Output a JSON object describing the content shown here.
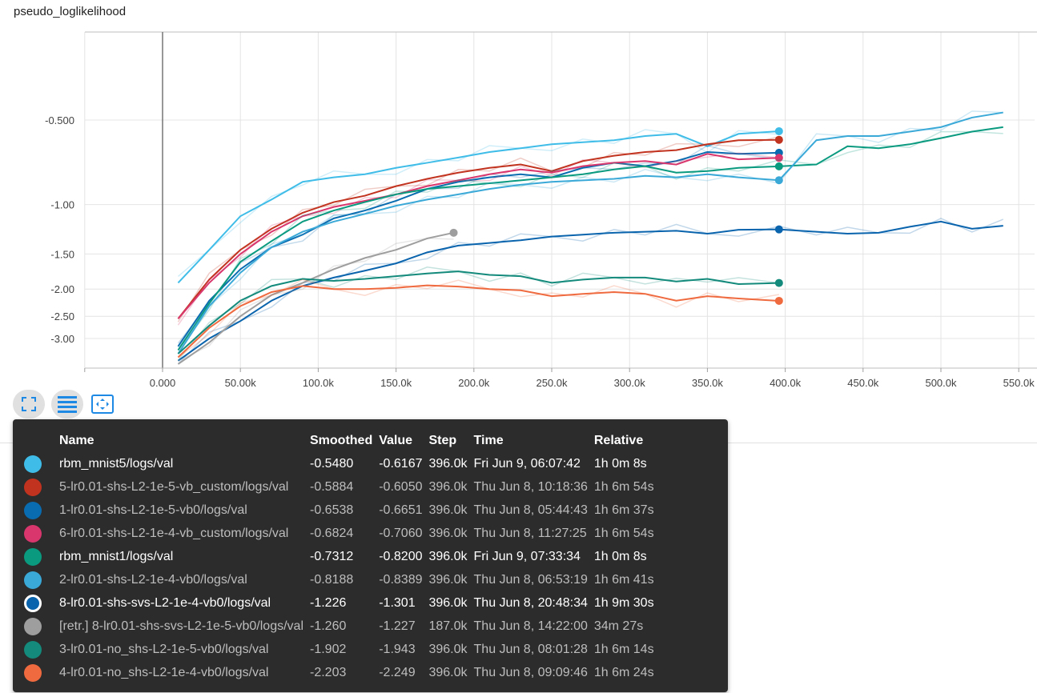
{
  "title": "pseudo_loglikelihood",
  "toolbar": {
    "fit_icon": "fullscreen-icon",
    "data_icon": "list-icon",
    "zoom_icon": "fit-domain-icon"
  },
  "chart_data": {
    "type": "line",
    "title": "pseudo_loglikelihood",
    "xlabel": "",
    "ylabel": "",
    "x_ticks": [
      "0.000",
      "50.00k",
      "100.0k",
      "150.0k",
      "200.0k",
      "250.0k",
      "300.0k",
      "350.0k",
      "400.0k",
      "450.0k",
      "500.0k",
      "550.0k"
    ],
    "y_ticks": [
      "-0.500",
      "-1.00",
      "-1.50",
      "-2.00",
      "-2.50",
      "-3.00"
    ],
    "xlim": [
      -50000,
      550000
    ],
    "y_scale": "log-of-negative",
    "grid": true,
    "series": [
      {
        "name": "rbm_mnist5/logs/val",
        "color": "#3fbde8",
        "x": [
          10000,
          30000,
          50000,
          70000,
          90000,
          110000,
          130000,
          150000,
          170000,
          190000,
          210000,
          230000,
          250000,
          270000,
          290000,
          310000,
          330000,
          350000,
          370000,
          396000
        ],
        "y": [
          -1.9,
          -1.45,
          -1.1,
          -0.96,
          -0.83,
          -0.8,
          -0.78,
          -0.74,
          -0.71,
          -0.68,
          -0.65,
          -0.63,
          -0.61,
          -0.6,
          -0.59,
          -0.57,
          -0.56,
          -0.62,
          -0.56,
          -0.548
        ]
      },
      {
        "name": "5-lr0.01-shs-L2-1e-5-vb_custom/logs/val",
        "color": "#c2331f",
        "x": [
          10000,
          30000,
          50000,
          70000,
          90000,
          110000,
          130000,
          150000,
          170000,
          190000,
          210000,
          230000,
          250000,
          270000,
          290000,
          310000,
          330000,
          350000,
          370000,
          396000
        ],
        "y": [
          -2.55,
          -1.85,
          -1.45,
          -1.22,
          -1.07,
          -0.98,
          -0.93,
          -0.86,
          -0.81,
          -0.77,
          -0.74,
          -0.72,
          -0.76,
          -0.7,
          -0.67,
          -0.65,
          -0.64,
          -0.61,
          -0.59,
          -0.588
        ]
      },
      {
        "name": "1-lr0.01-shs-L2-1e-5-vb0/logs/val",
        "color": "#0a6cb0",
        "x": [
          10000,
          30000,
          50000,
          70000,
          90000,
          110000,
          130000,
          150000,
          170000,
          190000,
          210000,
          230000,
          250000,
          270000,
          290000,
          310000,
          330000,
          350000,
          370000,
          396000
        ],
        "y": [
          -3.2,
          -2.2,
          -1.7,
          -1.42,
          -1.28,
          -1.12,
          -1.05,
          -0.97,
          -0.88,
          -0.83,
          -0.8,
          -0.78,
          -0.8,
          -0.74,
          -0.71,
          -0.73,
          -0.7,
          -0.65,
          -0.66,
          -0.654
        ]
      },
      {
        "name": "6-lr0.01-shs-L2-1e-4-vb_custom/logs/val",
        "color": "#d8366c",
        "x": [
          10000,
          30000,
          50000,
          70000,
          90000,
          110000,
          130000,
          150000,
          170000,
          190000,
          210000,
          230000,
          250000,
          270000,
          290000,
          310000,
          330000,
          350000,
          370000,
          396000
        ],
        "y": [
          -2.55,
          -1.9,
          -1.5,
          -1.25,
          -1.1,
          -1.02,
          -0.97,
          -0.92,
          -0.86,
          -0.82,
          -0.78,
          -0.75,
          -0.77,
          -0.73,
          -0.71,
          -0.7,
          -0.72,
          -0.66,
          -0.69,
          -0.682
        ]
      },
      {
        "name": "rbm_mnist1/logs/val",
        "color": "#0a9a7f",
        "x": [
          10000,
          30000,
          50000,
          70000,
          90000,
          110000,
          130000,
          150000,
          170000,
          190000,
          210000,
          230000,
          250000,
          270000,
          290000,
          310000,
          330000,
          350000,
          370000,
          396000,
          420000,
          440000,
          460000,
          480000,
          500000,
          520000,
          540000
        ],
        "y": [
          -3.3,
          -2.25,
          -1.6,
          -1.35,
          -1.15,
          -1.05,
          -0.98,
          -0.92,
          -0.88,
          -0.86,
          -0.84,
          -0.82,
          -0.8,
          -0.78,
          -0.75,
          -0.73,
          -0.77,
          -0.76,
          -0.74,
          -0.731,
          -0.72,
          -0.62,
          -0.63,
          -0.61,
          -0.58,
          -0.55,
          -0.53
        ]
      },
      {
        "name": "2-lr0.01-shs-L2-1e-4-vb0/logs/val",
        "color": "#3aa9d8",
        "x": [
          10000,
          30000,
          50000,
          70000,
          90000,
          110000,
          130000,
          150000,
          170000,
          190000,
          210000,
          230000,
          250000,
          270000,
          290000,
          310000,
          330000,
          350000,
          370000,
          396000,
          420000,
          440000,
          460000,
          480000,
          500000,
          520000,
          540000
        ],
        "y": [
          -3.4,
          -2.3,
          -1.75,
          -1.42,
          -1.25,
          -1.15,
          -1.08,
          -1.01,
          -0.96,
          -0.92,
          -0.88,
          -0.85,
          -0.83,
          -0.82,
          -0.81,
          -0.79,
          -0.8,
          -0.78,
          -0.8,
          -0.819,
          -0.59,
          -0.57,
          -0.57,
          -0.55,
          -0.53,
          -0.49,
          -0.47
        ]
      },
      {
        "name": "8-lr0.01-shs-svs-L2-1e-4-vb0/logs/val",
        "color": "#0a64ad",
        "x": [
          10000,
          30000,
          50000,
          70000,
          90000,
          110000,
          130000,
          150000,
          170000,
          190000,
          210000,
          230000,
          250000,
          270000,
          290000,
          310000,
          330000,
          350000,
          370000,
          396000,
          420000,
          440000,
          460000,
          480000,
          500000,
          520000,
          540000
        ],
        "y": [
          -3.6,
          -3.0,
          -2.6,
          -2.2,
          -1.95,
          -1.82,
          -1.72,
          -1.62,
          -1.48,
          -1.4,
          -1.37,
          -1.34,
          -1.3,
          -1.28,
          -1.26,
          -1.25,
          -1.24,
          -1.27,
          -1.23,
          -1.226,
          -1.25,
          -1.27,
          -1.26,
          -1.2,
          -1.15,
          -1.22,
          -1.19
        ]
      },
      {
        "name": "[retr.] 8-lr0.01-shs-svs-L2-1e-5-vb0/logs/val",
        "color": "#9e9e9e",
        "x": [
          10000,
          30000,
          50000,
          70000,
          90000,
          110000,
          130000,
          150000,
          170000,
          187000
        ],
        "y": [
          -3.7,
          -3.1,
          -2.5,
          -2.1,
          -1.9,
          -1.7,
          -1.55,
          -1.45,
          -1.32,
          -1.26
        ]
      },
      {
        "name": "3-lr0.01-no_shs-L2-1e-5-vb0/logs/val",
        "color": "#138a7b",
        "x": [
          10000,
          30000,
          50000,
          70000,
          90000,
          110000,
          130000,
          150000,
          170000,
          190000,
          210000,
          230000,
          250000,
          270000,
          290000,
          310000,
          330000,
          350000,
          370000,
          396000
        ],
        "y": [
          -3.4,
          -2.7,
          -2.2,
          -1.95,
          -1.84,
          -1.87,
          -1.84,
          -1.8,
          -1.76,
          -1.73,
          -1.78,
          -1.8,
          -1.9,
          -1.85,
          -1.82,
          -1.82,
          -1.88,
          -1.84,
          -1.92,
          -1.902
        ]
      },
      {
        "name": "4-lr0.01-no_shs-L2-1e-4-vb0/logs/val",
        "color": "#ef6a3f",
        "x": [
          10000,
          30000,
          50000,
          70000,
          90000,
          110000,
          130000,
          150000,
          170000,
          190000,
          210000,
          230000,
          250000,
          270000,
          290000,
          310000,
          330000,
          350000,
          370000,
          396000
        ],
        "y": [
          -3.5,
          -2.75,
          -2.3,
          -2.05,
          -1.95,
          -2.0,
          -2.0,
          -1.98,
          -1.94,
          -1.96,
          -2.0,
          -2.02,
          -2.12,
          -2.08,
          -2.05,
          -2.08,
          -2.2,
          -2.12,
          -2.16,
          -2.203
        ]
      }
    ]
  },
  "tooltip": {
    "headers": [
      "Name",
      "Smoothed",
      "Value",
      "Step",
      "Time",
      "Relative"
    ],
    "rows": [
      {
        "color": "#3fbde8",
        "name": "rbm_mnist5/logs/val",
        "smoothed": "-0.5480",
        "value": "-0.6167",
        "step": "396.0k",
        "time": "Fri Jun 9, 06:07:42",
        "relative": "1h 0m 8s",
        "style": "hi"
      },
      {
        "color": "#c2331f",
        "name": "5-lr0.01-shs-L2-1e-5-vb_custom/logs/val",
        "smoothed": "-0.5884",
        "value": "-0.6050",
        "step": "396.0k",
        "time": "Thu Jun 8, 10:18:36",
        "relative": "1h 6m 54s",
        "style": "dim"
      },
      {
        "color": "#0a6cb0",
        "name": "1-lr0.01-shs-L2-1e-5-vb0/logs/val",
        "smoothed": "-0.6538",
        "value": "-0.6651",
        "step": "396.0k",
        "time": "Thu Jun 8, 05:44:43",
        "relative": "1h 6m 37s",
        "style": "dim"
      },
      {
        "color": "#d8366c",
        "name": "6-lr0.01-shs-L2-1e-4-vb_custom/logs/val",
        "smoothed": "-0.6824",
        "value": "-0.7060",
        "step": "396.0k",
        "time": "Thu Jun 8, 11:27:25",
        "relative": "1h 6m 54s",
        "style": "dim"
      },
      {
        "color": "#0a9a7f",
        "name": "rbm_mnist1/logs/val",
        "smoothed": "-0.7312",
        "value": "-0.8200",
        "step": "396.0k",
        "time": "Fri Jun 9, 07:33:34",
        "relative": "1h 0m 8s",
        "style": "hi"
      },
      {
        "color": "#3aa9d8",
        "name": "2-lr0.01-shs-L2-1e-4-vb0/logs/val",
        "smoothed": "-0.8188",
        "value": "-0.8389",
        "step": "396.0k",
        "time": "Thu Jun 8, 06:53:19",
        "relative": "1h 6m 41s",
        "style": "dim"
      },
      {
        "color": "#0a64ad",
        "name": "8-lr0.01-shs-svs-L2-1e-4-vb0/logs/val",
        "smoothed": "-1.226",
        "value": "-1.301",
        "step": "396.0k",
        "time": "Thu Jun 8, 20:48:34",
        "relative": "1h 9m 30s",
        "style": "hi",
        "ring": true
      },
      {
        "color": "#9e9e9e",
        "name": "[retr.] 8-lr0.01-shs-svs-L2-1e-5-vb0/logs/val",
        "smoothed": "-1.260",
        "value": "-1.227",
        "step": "187.0k",
        "time": "Thu Jun 8, 14:22:00",
        "relative": "34m 27s",
        "style": "dim"
      },
      {
        "color": "#138a7b",
        "name": "3-lr0.01-no_shs-L2-1e-5-vb0/logs/val",
        "smoothed": "-1.902",
        "value": "-1.943",
        "step": "396.0k",
        "time": "Thu Jun 8, 08:01:28",
        "relative": "1h 6m 14s",
        "style": "dim"
      },
      {
        "color": "#ef6a3f",
        "name": "4-lr0.01-no_shs-L2-1e-4-vb0/logs/val",
        "smoothed": "-2.203",
        "value": "-2.249",
        "step": "396.0k",
        "time": "Thu Jun 8, 09:09:46",
        "relative": "1h 6m 24s",
        "style": "dim"
      }
    ]
  }
}
